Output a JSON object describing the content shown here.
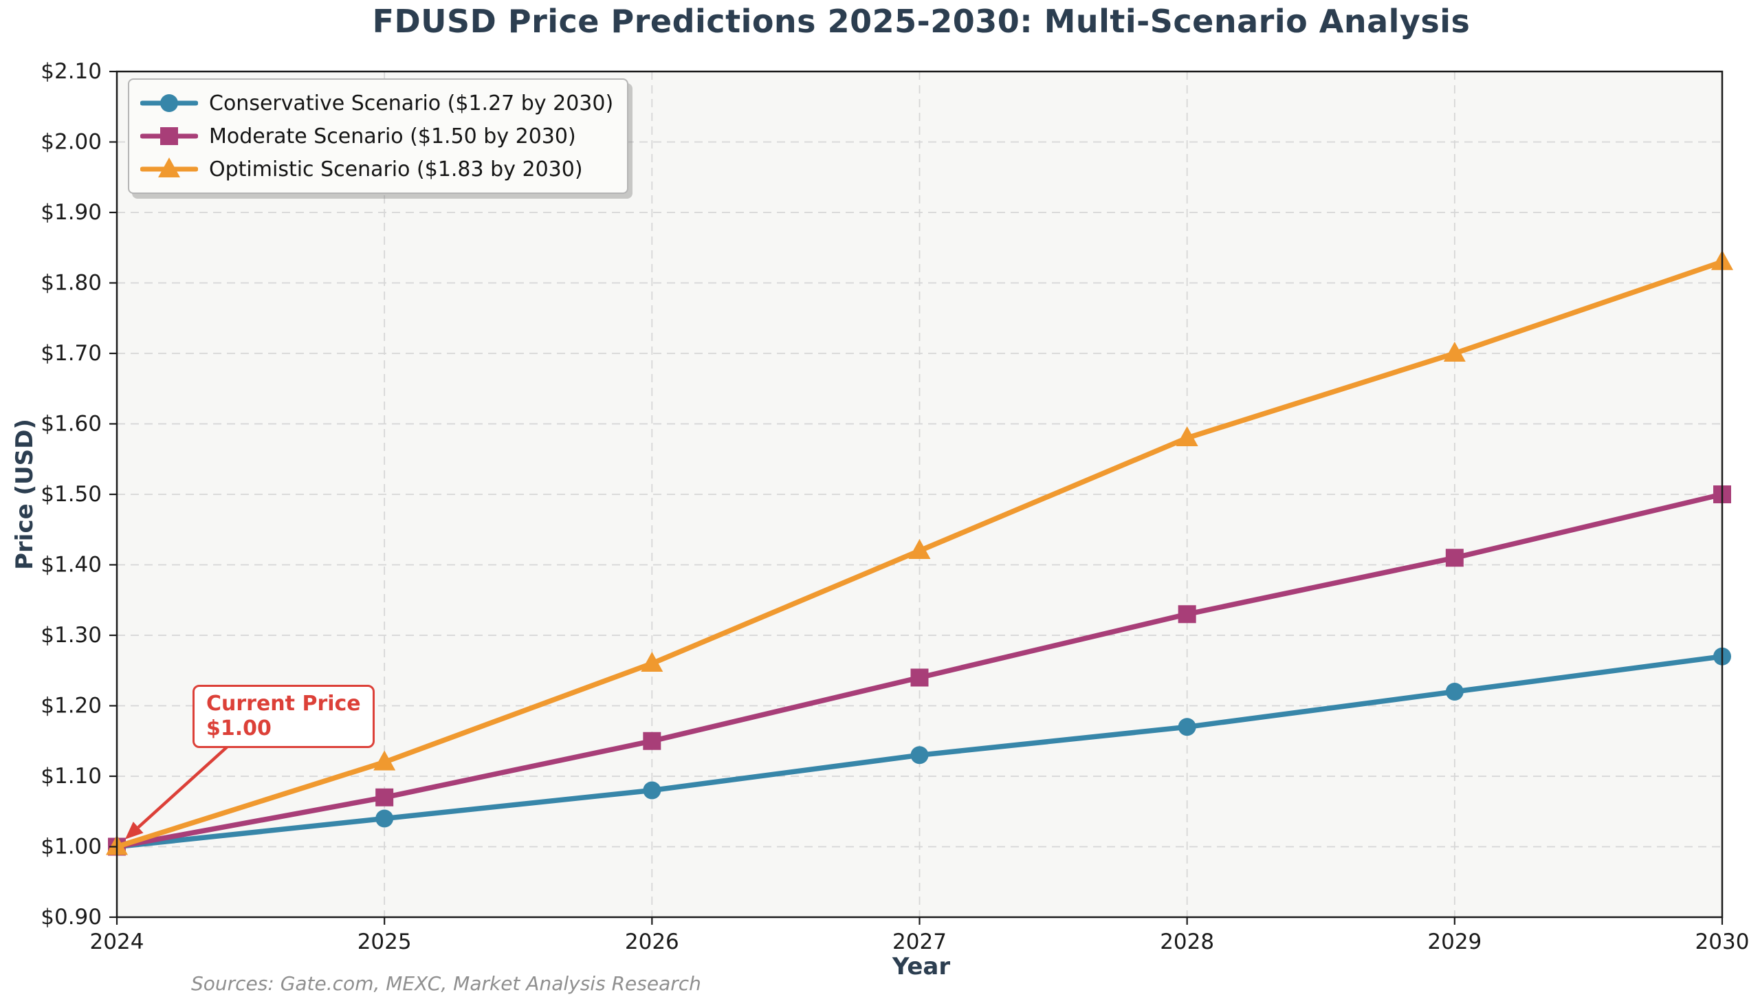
{
  "title": "FDUSD Price Predictions 2025-2030: Multi-Scenario Analysis",
  "chart_data": {
    "type": "line",
    "x": [
      2024,
      2025,
      2026,
      2027,
      2028,
      2029,
      2030
    ],
    "x_tick_labels": [
      "2024",
      "2025",
      "2026",
      "2027",
      "2028",
      "2029",
      "2030"
    ],
    "series": [
      {
        "name": "Conservative Scenario ($1.27 by 2030)",
        "marker": "circle",
        "color": "#3786A9",
        "values": [
          1.0,
          1.04,
          1.08,
          1.13,
          1.17,
          1.22,
          1.27
        ]
      },
      {
        "name": "Moderate Scenario ($1.50 by 2030)",
        "marker": "square",
        "color": "#A83E78",
        "values": [
          1.0,
          1.07,
          1.15,
          1.24,
          1.33,
          1.41,
          1.5
        ]
      },
      {
        "name": "Optimistic Scenario ($1.83 by 2030)",
        "marker": "triangle",
        "color": "#F0992F",
        "values": [
          1.0,
          1.12,
          1.26,
          1.42,
          1.58,
          1.7,
          1.83
        ]
      }
    ],
    "xlabel": "Year",
    "ylabel": "Price (USD)",
    "ylim": [
      0.9,
      2.1
    ],
    "y_tick_step": 0.1,
    "y_tick_labels": [
      "$0.90",
      "$1.00",
      "$1.10",
      "$1.20",
      "$1.30",
      "$1.40",
      "$1.50",
      "$1.60",
      "$1.70",
      "$1.80",
      "$1.90",
      "$2.00",
      "$2.10"
    ],
    "grid": true,
    "legend_position": "upper left",
    "annotation": {
      "line1": "Current Price",
      "line2": "$1.00",
      "target_x": 2024,
      "target_y": 1.0,
      "color": "#DC4038"
    },
    "sources": "Sources: Gate.com, MEXC, Market Analysis Research"
  },
  "colors": {
    "title": "#2C3E50",
    "axis_label": "#2C3E50",
    "tick_label": "#1a1a1a",
    "plot_background": "#f7f7f5",
    "figure_background": "#ffffff",
    "gridline": "#d6d6d6",
    "spine": "#1a1a1a",
    "annotation_red": "#DC4038",
    "sources_gray": "#8f8f8f"
  }
}
